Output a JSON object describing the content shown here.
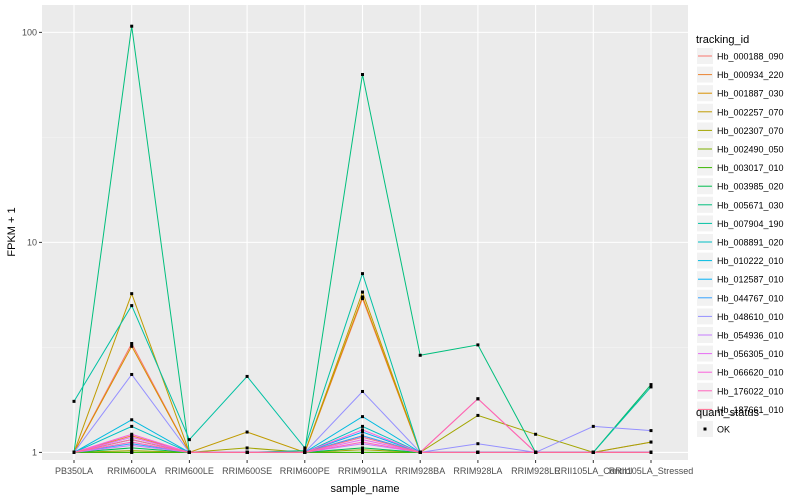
{
  "chart_data": {
    "type": "line",
    "ylabel": "FPKM + 1",
    "xlabel": "sample_name",
    "y_scale": "log10",
    "ylim": [
      0.92,
      135
    ],
    "y_ticks": [
      1,
      10,
      100
    ],
    "y_tick_labels": [
      "1",
      "10",
      "100"
    ],
    "grid": true,
    "legend_position": "right",
    "categories": [
      "PB350LA",
      "RRIM600LA",
      "RRIM600LE",
      "RRIM600SE",
      "RRIM600PE",
      "RRIM901LA",
      "RRIM928BA",
      "RRIM928LA",
      "RRIM928LE",
      "RRII105LA_Control",
      "RRII105LA_Stressed"
    ],
    "series_legend_title": "tracking_id",
    "series": [
      {
        "name": "Hb_000188_090",
        "color": "#F8766D",
        "values": [
          1,
          3.3,
          1,
          1,
          1,
          5.4,
          1,
          1.8,
          1,
          1,
          1.12
        ]
      },
      {
        "name": "Hb_000934_220",
        "color": "#EA8331",
        "values": [
          1,
          1.2,
          1,
          1,
          1,
          1.2,
          1,
          1,
          1,
          1,
          1
        ]
      },
      {
        "name": "Hb_001887_030",
        "color": "#D89000",
        "values": [
          1,
          3.2,
          1,
          1,
          1,
          5.5,
          1,
          1,
          1,
          1,
          1
        ]
      },
      {
        "name": "Hb_002257_070",
        "color": "#C09B00",
        "values": [
          1,
          5.7,
          1,
          1.25,
          1,
          5.8,
          1,
          1,
          1,
          1,
          1
        ]
      },
      {
        "name": "Hb_002307_070",
        "color": "#A3A500",
        "values": [
          1,
          1.02,
          1,
          1.05,
          1,
          1.03,
          1,
          1.5,
          1.22,
          1,
          1.12
        ]
      },
      {
        "name": "Hb_002490_050",
        "color": "#7CAE00",
        "values": [
          1,
          1,
          1,
          1,
          1,
          1,
          1,
          1,
          1,
          1,
          2.1
        ]
      },
      {
        "name": "Hb_003017_010",
        "color": "#39B600",
        "values": [
          1,
          1,
          1,
          1,
          1,
          1,
          1,
          1,
          1,
          1,
          1
        ]
      },
      {
        "name": "Hb_003985_020",
        "color": "#00BB4E",
        "values": [
          1,
          1.05,
          1,
          1,
          1,
          1.05,
          1,
          1,
          1,
          1,
          1
        ]
      },
      {
        "name": "Hb_005671_030",
        "color": "#00BF7D",
        "values": [
          1,
          107,
          1,
          1,
          1.02,
          63,
          2.9,
          3.25,
          1,
          1,
          2.1
        ]
      },
      {
        "name": "Hb_007904_190",
        "color": "#00C1A3",
        "values": [
          1.75,
          5,
          1.15,
          2.3,
          1.05,
          7.1,
          1,
          1,
          1,
          1,
          2.05
        ]
      },
      {
        "name": "Hb_008891_020",
        "color": "#00BFC4",
        "values": [
          1,
          1.33,
          1,
          1,
          1,
          1.33,
          1,
          1,
          1,
          1,
          1
        ]
      },
      {
        "name": "Hb_010222_010",
        "color": "#00BAE0",
        "values": [
          1,
          1.43,
          1,
          1,
          1,
          1.48,
          1,
          1,
          1,
          1,
          1
        ]
      },
      {
        "name": "Hb_012587_010",
        "color": "#00B0F6",
        "values": [
          1,
          1.15,
          1,
          1,
          1,
          1.25,
          1,
          1,
          1,
          1,
          1
        ]
      },
      {
        "name": "Hb_044767_010",
        "color": "#35A2FF",
        "values": [
          1,
          1.1,
          1,
          1,
          1,
          1.2,
          1,
          1,
          1,
          1,
          1
        ]
      },
      {
        "name": "Hb_048610_010",
        "color": "#9590FF",
        "values": [
          1,
          2.35,
          1,
          1,
          1,
          1.95,
          1,
          1.1,
          1,
          1.33,
          1.27
        ]
      },
      {
        "name": "Hb_054936_010",
        "color": "#C77CFF",
        "values": [
          1,
          1.08,
          1,
          1,
          1,
          1.1,
          1,
          1,
          1,
          1,
          1
        ]
      },
      {
        "name": "Hb_056305_010",
        "color": "#E76BF3",
        "values": [
          1,
          1.18,
          1,
          1,
          1,
          1.15,
          1,
          1,
          1,
          1,
          1
        ]
      },
      {
        "name": "Hb_066620_010",
        "color": "#FA62DB",
        "values": [
          1,
          1.22,
          1,
          1,
          1,
          1.28,
          1,
          1,
          1,
          1,
          1
        ]
      },
      {
        "name": "Hb_176022_010",
        "color": "#FF62BC",
        "values": [
          1,
          1.12,
          1,
          1,
          1,
          1.12,
          1,
          1.8,
          1,
          1,
          1
        ]
      },
      {
        "name": "Hb_187661_010",
        "color": "#FF6C91",
        "values": [
          1,
          1.15,
          1,
          1,
          1,
          1.18,
          1,
          1,
          1,
          1,
          1
        ]
      }
    ],
    "shape_legend_title": "quant_status",
    "shape_legend_entries": [
      "OK"
    ]
  }
}
